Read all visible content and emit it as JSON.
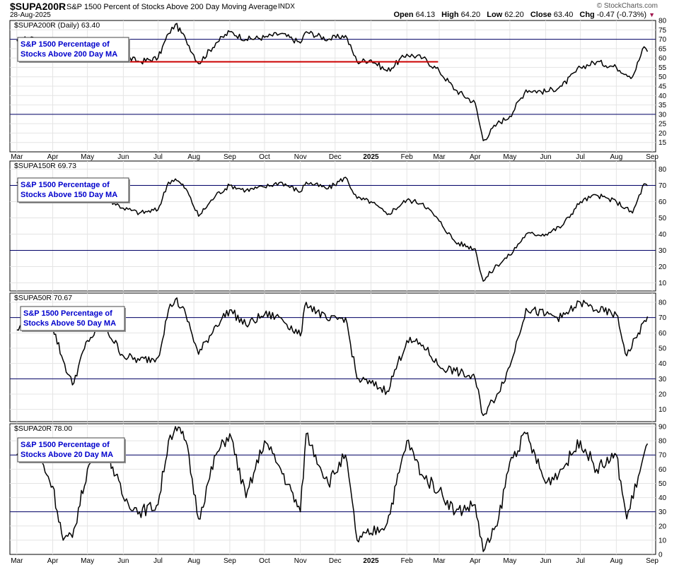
{
  "header": {
    "symbol": "$SUPA200R",
    "description": "S&P 1500 Percent of Stocks Above 200 Day Moving Average",
    "exchange": "INDX",
    "date": "28-Aug-2025",
    "brand": "© StockCharts.com",
    "ohlc": {
      "open_label": "Open",
      "open": "64.13",
      "high_label": "High",
      "high": "64.20",
      "low_label": "Low",
      "low": "62.20",
      "close_label": "Close",
      "close": "63.40",
      "chg_label": "Chg",
      "chg": "-0.47 (-0.73%)"
    }
  },
  "colors": {
    "line": "#000000",
    "ref_line": "#000066",
    "support": "#cc0000",
    "annotation_text": "#0000cc",
    "grid": "#e4e4e4"
  },
  "chart_data": [
    {
      "type": "line",
      "title": "$SUPA200R (Daily) 63.40",
      "annotation": "S&P 1500 Percentage of Stocks Above 200 Day MA",
      "ylim": [
        10,
        80
      ],
      "yticks": [
        15,
        20,
        25,
        30,
        35,
        40,
        45,
        50,
        55,
        60,
        65,
        70,
        75,
        80
      ],
      "ref_lines": [
        30,
        70
      ],
      "support_line": {
        "x": [
          "2024-04-15",
          "2025-02-28"
        ],
        "y": 58
      },
      "x_tick_labels": [
        "Mar",
        "Apr",
        "May",
        "Jun",
        "Jul",
        "Aug",
        "Sep",
        "Oct",
        "Nov",
        "Dec",
        "2025",
        "Feb",
        "Mar",
        "Apr",
        "May",
        "Jun",
        "Jul",
        "Aug",
        "Sep"
      ],
      "series": [
        {
          "x": [
            "2024-03-01",
            "2024-03-15",
            "2024-04-01",
            "2024-04-15",
            "2024-05-01",
            "2024-05-15",
            "2024-06-01",
            "2024-06-15",
            "2024-07-01",
            "2024-07-10",
            "2024-07-16",
            "2024-07-25",
            "2024-08-05",
            "2024-08-20",
            "2024-09-01",
            "2024-09-15",
            "2024-10-01",
            "2024-10-15",
            "2024-11-01",
            "2024-11-06",
            "2024-11-25",
            "2024-12-10",
            "2024-12-20",
            "2025-01-01",
            "2025-01-15",
            "2025-02-01",
            "2025-02-15",
            "2025-03-01",
            "2025-03-15",
            "2025-04-01",
            "2025-04-08",
            "2025-04-20",
            "2025-05-01",
            "2025-05-15",
            "2025-06-01",
            "2025-06-15",
            "2025-07-01",
            "2025-07-15",
            "2025-08-01",
            "2025-08-15",
            "2025-08-25",
            "2025-08-28"
          ],
          "y": [
            69,
            71,
            63,
            62,
            66,
            67,
            61,
            58,
            60,
            73,
            78,
            70,
            57,
            68,
            74,
            70,
            71,
            73,
            68,
            74,
            70,
            72,
            58,
            59,
            53,
            62,
            60,
            53,
            43,
            36,
            16,
            25,
            29,
            43,
            42,
            45,
            55,
            58,
            55,
            50,
            66,
            63.4
          ]
        }
      ]
    },
    {
      "type": "line",
      "title": "$SUPA150R 69.73",
      "annotation": "S&P 1500 Percentage of Stocks Above 150 Day MA",
      "ylim": [
        5,
        85
      ],
      "yticks": [
        10,
        20,
        30,
        40,
        50,
        60,
        70,
        80
      ],
      "ref_lines": [
        30,
        70
      ],
      "series": [
        {
          "x": [
            "2024-03-01",
            "2024-03-15",
            "2024-04-01",
            "2024-04-15",
            "2024-05-01",
            "2024-05-15",
            "2024-06-01",
            "2024-06-15",
            "2024-07-01",
            "2024-07-10",
            "2024-07-16",
            "2024-07-25",
            "2024-08-05",
            "2024-08-20",
            "2024-09-01",
            "2024-09-15",
            "2024-10-01",
            "2024-10-15",
            "2024-11-01",
            "2024-11-06",
            "2024-11-25",
            "2024-12-10",
            "2024-12-20",
            "2025-01-01",
            "2025-01-15",
            "2025-02-01",
            "2025-02-15",
            "2025-03-01",
            "2025-03-15",
            "2025-04-01",
            "2025-04-08",
            "2025-04-20",
            "2025-05-01",
            "2025-05-15",
            "2025-06-01",
            "2025-06-15",
            "2025-07-01",
            "2025-07-15",
            "2025-08-01",
            "2025-08-15",
            "2025-08-25",
            "2025-08-28"
          ],
          "y": [
            72,
            74,
            66,
            64,
            65,
            63,
            56,
            53,
            55,
            72,
            74,
            68,
            51,
            64,
            70,
            67,
            69,
            72,
            66,
            72,
            68,
            75,
            62,
            60,
            52,
            61,
            59,
            48,
            35,
            31,
            11,
            21,
            27,
            40,
            40,
            45,
            60,
            64,
            60,
            53,
            71,
            69.73
          ]
        }
      ]
    },
    {
      "type": "line",
      "title": "$SUPA50R 70.67",
      "annotation": "S&P 1500 Percentage of Stocks Above 50 Day MA",
      "ylim": [
        2,
        86
      ],
      "yticks": [
        10,
        20,
        30,
        40,
        50,
        60,
        70,
        80
      ],
      "ref_lines": [
        30,
        70
      ],
      "series": [
        {
          "x": [
            "2024-03-01",
            "2024-03-15",
            "2024-04-01",
            "2024-04-10",
            "2024-04-18",
            "2024-05-01",
            "2024-05-15",
            "2024-06-01",
            "2024-06-15",
            "2024-07-01",
            "2024-07-10",
            "2024-07-16",
            "2024-07-25",
            "2024-08-05",
            "2024-08-20",
            "2024-09-01",
            "2024-09-15",
            "2024-10-01",
            "2024-10-15",
            "2024-11-01",
            "2024-11-06",
            "2024-11-25",
            "2024-12-10",
            "2024-12-20",
            "2025-01-01",
            "2025-01-15",
            "2025-02-01",
            "2025-02-15",
            "2025-03-01",
            "2025-03-15",
            "2025-04-01",
            "2025-04-08",
            "2025-04-20",
            "2025-05-01",
            "2025-05-15",
            "2025-06-01",
            "2025-06-15",
            "2025-07-01",
            "2025-07-15",
            "2025-08-01",
            "2025-08-10",
            "2025-08-20",
            "2025-08-28"
          ],
          "y": [
            62,
            68,
            64,
            42,
            26,
            55,
            65,
            45,
            42,
            44,
            75,
            82,
            72,
            46,
            65,
            75,
            65,
            72,
            70,
            58,
            80,
            68,
            70,
            30,
            27,
            22,
            55,
            52,
            38,
            35,
            30,
            6,
            20,
            38,
            76,
            72,
            70,
            80,
            75,
            72,
            45,
            60,
            70.67
          ]
        }
      ]
    },
    {
      "type": "line",
      "title": "$SUPA20R 78.00",
      "annotation": "S&P 1500 Percentage of Stocks Above 20 Day MA",
      "ylim": [
        0,
        92
      ],
      "yticks": [
        0,
        10,
        20,
        30,
        40,
        50,
        60,
        70,
        80,
        90
      ],
      "ref_lines": [
        30,
        70
      ],
      "series": [
        {
          "x": [
            "2024-03-01",
            "2024-03-15",
            "2024-04-01",
            "2024-04-10",
            "2024-04-18",
            "2024-05-01",
            "2024-05-15",
            "2024-06-01",
            "2024-06-15",
            "2024-07-01",
            "2024-07-10",
            "2024-07-16",
            "2024-07-25",
            "2024-08-05",
            "2024-08-20",
            "2024-09-01",
            "2024-09-15",
            "2024-10-01",
            "2024-10-15",
            "2024-11-01",
            "2024-11-06",
            "2024-11-25",
            "2024-12-10",
            "2024-12-20",
            "2025-01-01",
            "2025-01-15",
            "2025-02-01",
            "2025-02-15",
            "2025-03-01",
            "2025-03-15",
            "2025-04-01",
            "2025-04-08",
            "2025-04-20",
            "2025-05-01",
            "2025-05-15",
            "2025-06-01",
            "2025-06-15",
            "2025-07-01",
            "2025-07-15",
            "2025-08-01",
            "2025-08-10",
            "2025-08-20",
            "2025-08-28"
          ],
          "y": [
            70,
            78,
            48,
            10,
            12,
            60,
            80,
            40,
            30,
            35,
            80,
            90,
            80,
            25,
            70,
            85,
            40,
            80,
            60,
            30,
            85,
            50,
            70,
            10,
            15,
            22,
            80,
            55,
            45,
            30,
            35,
            2,
            20,
            65,
            85,
            50,
            60,
            80,
            60,
            70,
            25,
            55,
            78
          ]
        }
      ]
    }
  ]
}
